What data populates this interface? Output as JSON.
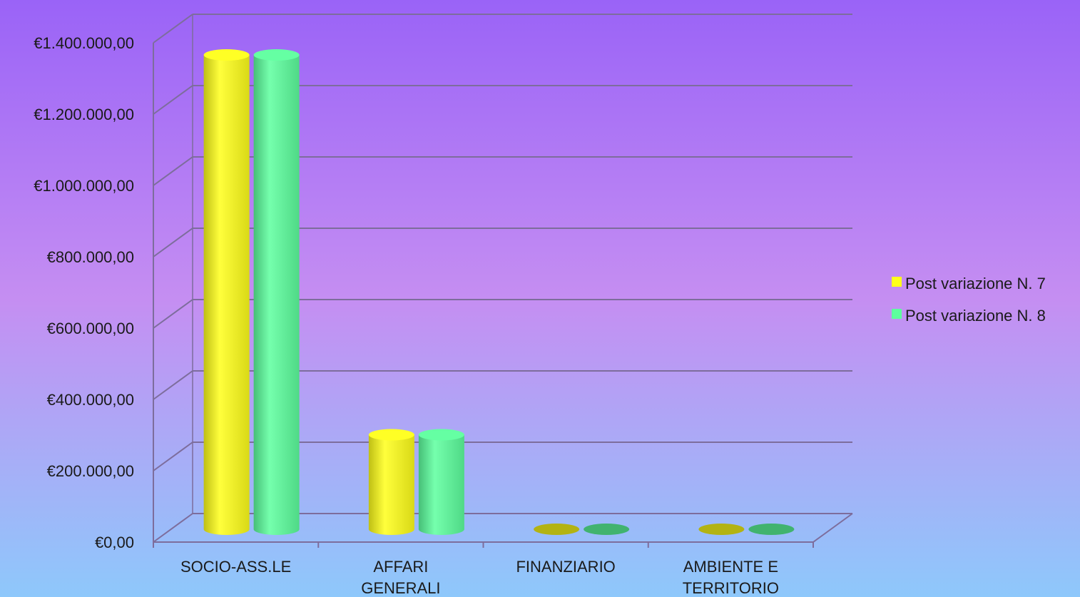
{
  "colors": {
    "background_top": "#9a63f7",
    "background_middle": "#c58ef2",
    "background_bottom": "#8ec8fb",
    "series_1": "#ffff1a",
    "series_2": "#5dff9e",
    "gridline": "#7d6d9c"
  },
  "chart_data": {
    "type": "bar",
    "title": "",
    "xlabel": "",
    "ylabel": "",
    "categories": [
      [
        "SOCIO-ASS.LE"
      ],
      [
        "AFFARI",
        "GENERALI"
      ],
      [
        "FINANZIARIO"
      ],
      [
        "AMBIENTE E",
        "TERRITORIO"
      ]
    ],
    "series": [
      {
        "name": "Post variazione N. 7",
        "values": [
          1330000,
          265000,
          0,
          0
        ]
      },
      {
        "name": "Post variazione N. 8",
        "values": [
          1330000,
          265000,
          0,
          0
        ]
      }
    ],
    "ylim": [
      0,
      1400000
    ],
    "yticks": [
      0,
      200000,
      400000,
      600000,
      800000,
      1000000,
      1200000,
      1400000
    ],
    "ytick_labels": [
      "€0,00",
      "€200.000,00",
      "€400.000,00",
      "€600.000,00",
      "€800.000,00",
      "€1.000.000,00",
      "€1.200.000,00",
      "€1.400.000,00"
    ],
    "grid": true,
    "style": "3d-cylinder",
    "legend_position": "right"
  }
}
